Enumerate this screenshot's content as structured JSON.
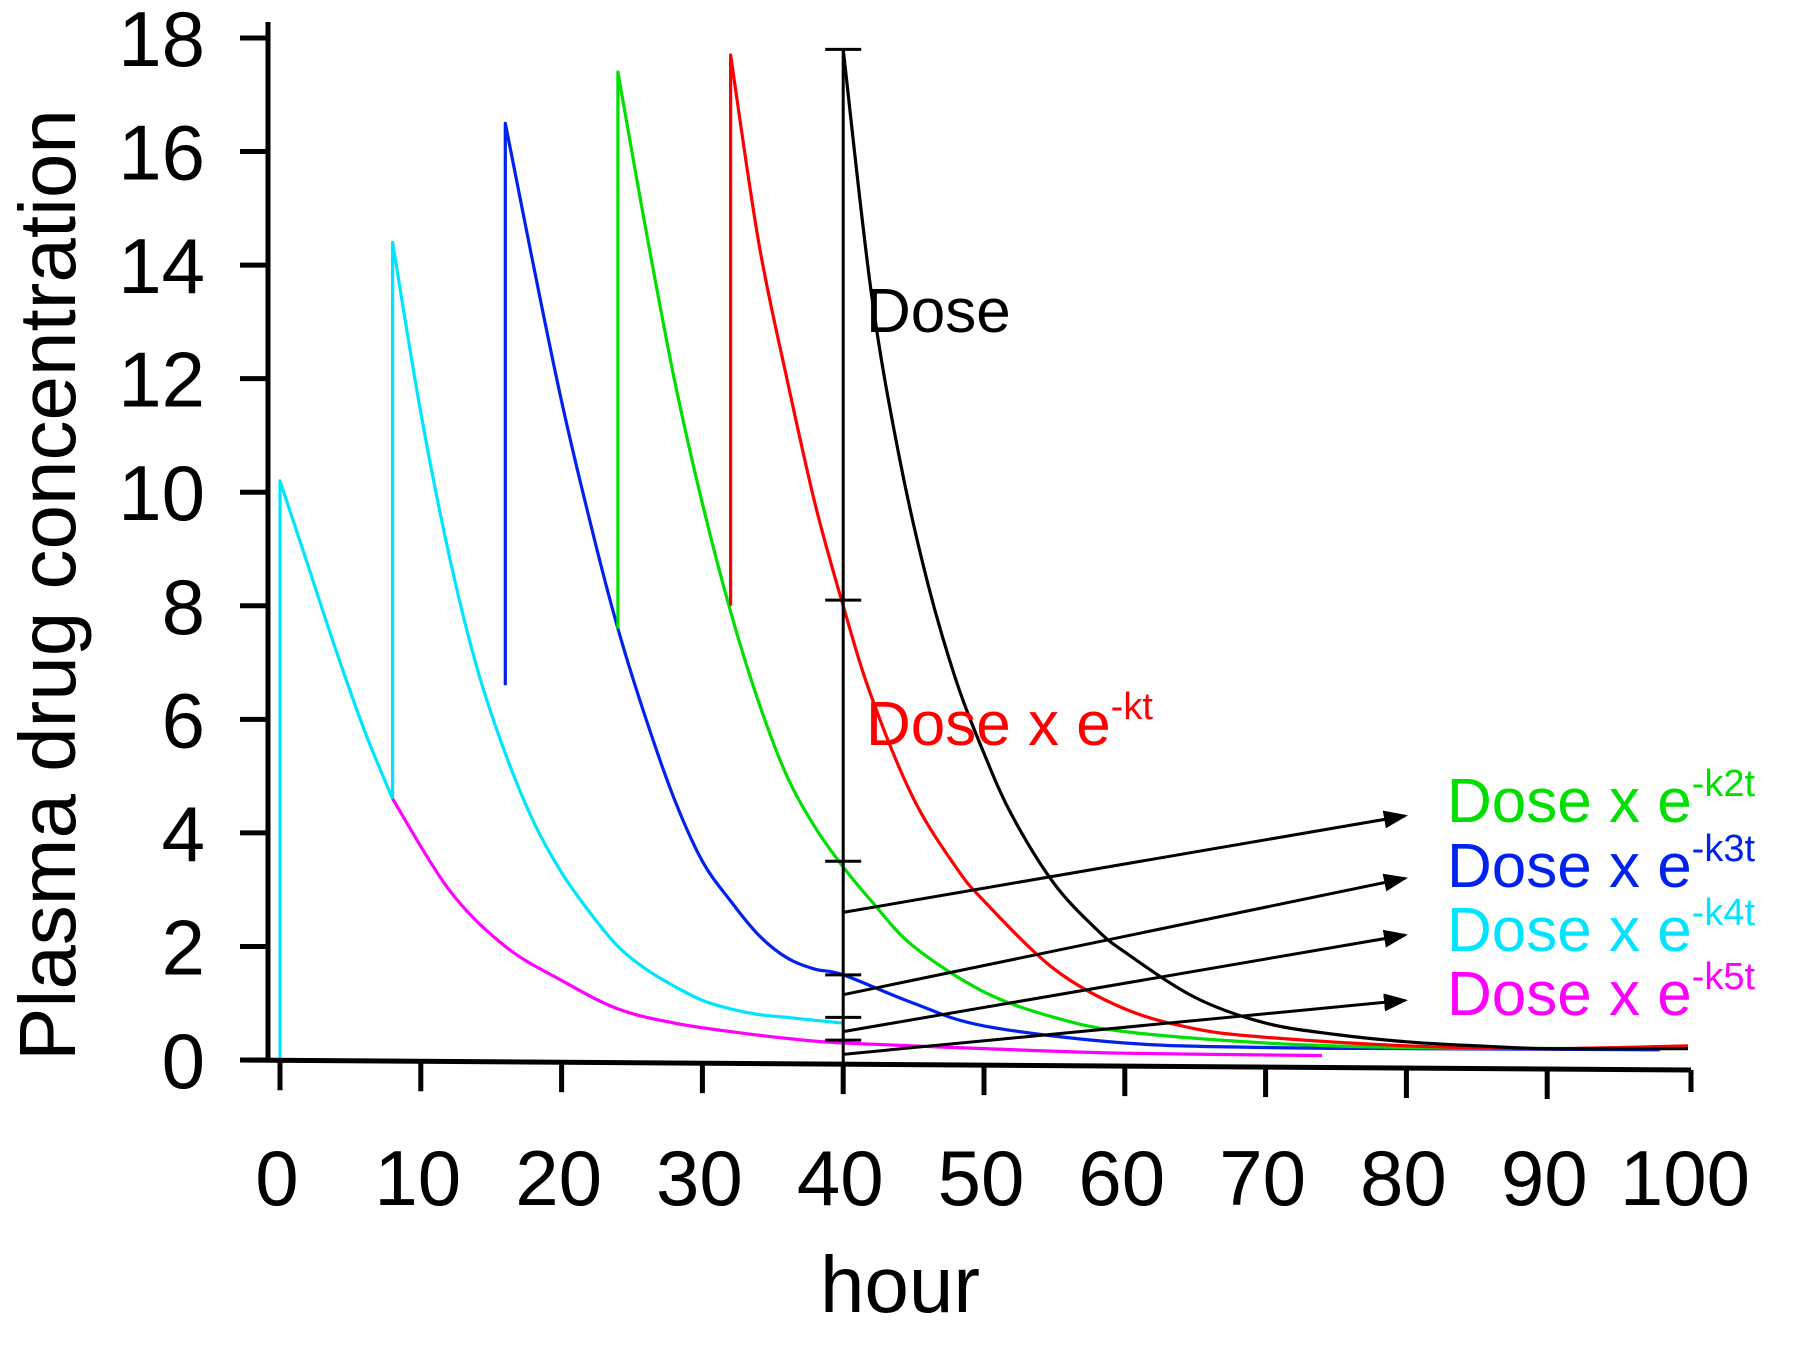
{
  "chart_data": {
    "type": "line",
    "title": "",
    "xlabel": "hour",
    "ylabel": "Plasma drug concentration",
    "xlim": [
      0,
      100
    ],
    "ylim": [
      0,
      18
    ],
    "xticks": [
      0,
      10,
      20,
      30,
      40,
      50,
      60,
      70,
      80,
      90,
      100
    ],
    "yticks": [
      0,
      2,
      4,
      6,
      8,
      10,
      12,
      14,
      16,
      18
    ],
    "grid": false,
    "series": [
      {
        "color": "#00e5ff",
        "x": [
          0,
          0,
          2,
          4,
          6,
          8,
          8,
          10,
          12,
          14,
          16,
          18,
          20,
          22,
          24,
          26,
          28,
          30,
          32,
          34,
          36,
          38,
          40
        ],
        "y": [
          0,
          10.2,
          8.7,
          7.2,
          5.8,
          4.6,
          14.4,
          11.4,
          8.9,
          6.9,
          5.4,
          4.2,
          3.3,
          2.6,
          2.0,
          1.6,
          1.3,
          1.05,
          0.9,
          0.8,
          0.75,
          0.7,
          0.65
        ]
      },
      {
        "color": "#ff00ff",
        "x": [
          8,
          12,
          16,
          20,
          24,
          28,
          32,
          36,
          40,
          50,
          60,
          74
        ],
        "y": [
          4.6,
          3.0,
          2.0,
          1.4,
          0.9,
          0.65,
          0.5,
          0.38,
          0.3,
          0.2,
          0.12,
          0.08
        ]
      },
      {
        "color": "#0022ee",
        "x": [
          16,
          16,
          18,
          20,
          22,
          24,
          26,
          28,
          30,
          32,
          34,
          36,
          38,
          40,
          45,
          50,
          60,
          70,
          80,
          98
        ],
        "y": [
          6.6,
          16.5,
          14.0,
          11.6,
          9.5,
          7.6,
          6.0,
          4.6,
          3.5,
          2.8,
          2.2,
          1.8,
          1.6,
          1.5,
          1.0,
          0.6,
          0.3,
          0.22,
          0.2,
          0.18
        ]
      },
      {
        "color": "#00e000",
        "x": [
          24,
          24,
          26,
          28,
          30,
          32,
          34,
          36,
          38,
          40,
          42,
          45,
          50,
          55,
          60,
          70,
          80,
          95
        ],
        "y": [
          7.6,
          17.4,
          14.6,
          12.0,
          9.8,
          7.9,
          6.3,
          5.0,
          4.1,
          3.4,
          2.8,
          2.0,
          1.2,
          0.75,
          0.5,
          0.3,
          0.22,
          0.2
        ]
      },
      {
        "color": "#ff0000",
        "x": [
          32,
          32,
          34,
          36,
          38,
          40,
          42,
          45,
          48,
          50,
          55,
          60,
          65,
          70,
          80,
          90,
          100
        ],
        "y": [
          8.0,
          17.7,
          14.4,
          12.0,
          9.8,
          8.0,
          6.4,
          4.6,
          3.4,
          2.8,
          1.6,
          0.9,
          0.55,
          0.4,
          0.25,
          0.2,
          0.25
        ]
      },
      {
        "color": "#000000",
        "x": [
          40,
          42,
          44,
          46,
          48,
          50,
          52,
          55,
          58,
          60,
          65,
          70,
          75,
          80,
          85,
          90,
          100
        ],
        "y": [
          17.8,
          13.5,
          10.6,
          8.4,
          6.7,
          5.4,
          4.3,
          3.1,
          2.3,
          1.9,
          1.1,
          0.65,
          0.45,
          0.32,
          0.25,
          0.2,
          0.2
        ]
      }
    ],
    "annotations": [
      {
        "id": "dose",
        "base": "Dose",
        "sup": "",
        "color": "#000000"
      },
      {
        "id": "dose-kt",
        "base": "Dose x e",
        "sup": "-kt",
        "color": "#ff0000"
      },
      {
        "id": "dose-k2t",
        "base": "Dose x e",
        "sup": "-k2t",
        "color": "#00e000"
      },
      {
        "id": "dose-k3t",
        "base": "Dose x e",
        "sup": "-k3t",
        "color": "#0022ee"
      },
      {
        "id": "dose-k4t",
        "base": "Dose x e",
        "sup": "-k4t",
        "color": "#00e5ff"
      },
      {
        "id": "dose-k5t",
        "base": "Dose x e",
        "sup": "-k5t",
        "color": "#ff00ff"
      }
    ],
    "dose_bar_ticks": [
      17.8,
      8.1,
      3.5,
      1.5,
      0.75,
      0.35
    ],
    "arrow_origins": [
      2.6,
      1.15,
      0.5,
      0.1
    ]
  }
}
